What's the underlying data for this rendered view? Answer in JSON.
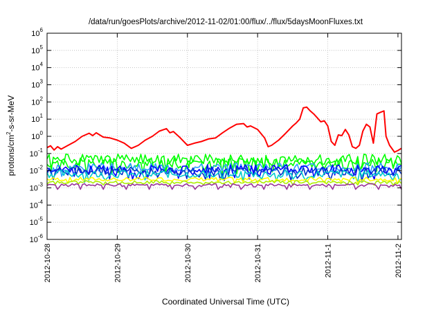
{
  "chart_data": {
    "type": "line",
    "title": "/data/run/goesPlots/archive/2012-11-02/01:00/flux/../flux/5daysMoonFluxes.txt",
    "xlabel": "Coordinated Universal Time (UTC)",
    "ylabel": {
      "base": "protons/cm",
      "sup": "2",
      "rest": "-s-sr-MeV"
    },
    "x_ticks": [
      "2012-10-28",
      "2012-10-29",
      "2012-10-30",
      "2012-10-31",
      "2012-11-1",
      "2012-11-2"
    ],
    "x_range_days": [
      0,
      5.05
    ],
    "y_scale": "log",
    "y_ticks": [
      {
        "base": "10",
        "exp": "-6",
        "value": 1e-06
      },
      {
        "base": "10",
        "exp": "-5",
        "value": 1e-05
      },
      {
        "base": "10",
        "exp": "-4",
        "value": 0.0001
      },
      {
        "base": "10",
        "exp": "-3",
        "value": 0.001
      },
      {
        "base": "10",
        "exp": "-2",
        "value": 0.01
      },
      {
        "base": "10",
        "exp": "-1",
        "value": 0.1
      },
      {
        "base": "10",
        "exp": "0",
        "value": 1
      },
      {
        "base": "10",
        "exp": "1",
        "value": 10
      },
      {
        "base": "10",
        "exp": "2",
        "value": 100
      },
      {
        "base": "10",
        "exp": "3",
        "value": 1000
      },
      {
        "base": "10",
        "exp": "4",
        "value": 10000
      },
      {
        "base": "10",
        "exp": "5",
        "value": 100000
      },
      {
        "base": "10",
        "exp": "6",
        "value": 1000000
      }
    ],
    "ylim": [
      1e-06,
      1000000.0
    ],
    "grid": true,
    "legend": "none",
    "series": [
      {
        "color": "#ff0000",
        "points": [
          [
            0,
            0.22
          ],
          [
            0.05,
            0.28
          ],
          [
            0.1,
            0.16
          ],
          [
            0.15,
            0.25
          ],
          [
            0.2,
            0.18
          ],
          [
            0.3,
            0.3
          ],
          [
            0.4,
            0.5
          ],
          [
            0.5,
            1.0
          ],
          [
            0.6,
            1.5
          ],
          [
            0.65,
            1.1
          ],
          [
            0.7,
            1.6
          ],
          [
            0.8,
            0.9
          ],
          [
            0.9,
            0.8
          ],
          [
            1.0,
            0.6
          ],
          [
            1.1,
            0.4
          ],
          [
            1.2,
            0.2
          ],
          [
            1.3,
            0.3
          ],
          [
            1.4,
            0.6
          ],
          [
            1.5,
            1.0
          ],
          [
            1.6,
            2.0
          ],
          [
            1.7,
            2.8
          ],
          [
            1.75,
            1.6
          ],
          [
            1.8,
            1.9
          ],
          [
            1.9,
            0.8
          ],
          [
            2.0,
            0.3
          ],
          [
            2.1,
            0.4
          ],
          [
            2.2,
            0.5
          ],
          [
            2.3,
            0.7
          ],
          [
            2.4,
            0.8
          ],
          [
            2.5,
            1.6
          ],
          [
            2.6,
            3.0
          ],
          [
            2.7,
            5.0
          ],
          [
            2.8,
            5.5
          ],
          [
            2.85,
            3.5
          ],
          [
            2.9,
            4.0
          ],
          [
            3.0,
            2.5
          ],
          [
            3.1,
            0.8
          ],
          [
            3.15,
            0.25
          ],
          [
            3.2,
            0.3
          ],
          [
            3.3,
            0.6
          ],
          [
            3.4,
            1.5
          ],
          [
            3.5,
            4.0
          ],
          [
            3.55,
            6.0
          ],
          [
            3.6,
            10
          ],
          [
            3.65,
            45
          ],
          [
            3.7,
            50
          ],
          [
            3.75,
            30
          ],
          [
            3.8,
            20
          ],
          [
            3.85,
            12
          ],
          [
            3.9,
            7
          ],
          [
            3.95,
            8
          ],
          [
            4.0,
            4
          ],
          [
            4.05,
            0.5
          ],
          [
            4.1,
            0.3
          ],
          [
            4.15,
            1.2
          ],
          [
            4.2,
            1.1
          ],
          [
            4.25,
            2.5
          ],
          [
            4.3,
            1.2
          ],
          [
            4.35,
            0.25
          ],
          [
            4.4,
            0.2
          ],
          [
            4.45,
            0.3
          ],
          [
            4.5,
            2.0
          ],
          [
            4.55,
            5.0
          ],
          [
            4.6,
            3.5
          ],
          [
            4.65,
            0.4
          ],
          [
            4.7,
            20
          ],
          [
            4.75,
            25
          ],
          [
            4.8,
            30
          ],
          [
            4.83,
            1.0
          ],
          [
            4.88,
            0.3
          ],
          [
            4.92,
            0.18
          ],
          [
            4.95,
            0.12
          ],
          [
            5.0,
            0.15
          ],
          [
            5.05,
            0.2
          ]
        ]
      },
      {
        "color": "#00ff00",
        "base": 0.045,
        "amp": 0.7,
        "seed": 1
      },
      {
        "color": "#00ff00",
        "base": 0.028,
        "amp": 0.7,
        "seed": 2
      },
      {
        "color": "#2aa0ff",
        "base": 0.016,
        "amp": 0.55,
        "seed": 3
      },
      {
        "color": "#0000ff",
        "base": 0.012,
        "amp": 0.6,
        "seed": 4
      },
      {
        "color": "#0033cc",
        "base": 0.009,
        "amp": 0.55,
        "seed": 5
      },
      {
        "color": "#00cccc",
        "base": 0.0065,
        "amp": 0.5,
        "seed": 6
      },
      {
        "color": "#ffff00",
        "base": 0.0032,
        "amp": 0.25,
        "seed": 7
      },
      {
        "color": "#aaee00",
        "base": 0.0022,
        "amp": 0.2,
        "seed": 8
      },
      {
        "color": "#993399",
        "base": 0.0015,
        "amp": 0.15,
        "seed": 9,
        "dips": true
      }
    ]
  }
}
